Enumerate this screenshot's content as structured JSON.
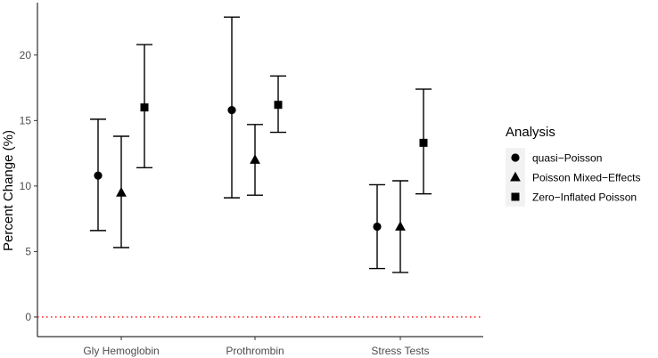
{
  "chart_data": {
    "type": "scatter",
    "title": "",
    "xlabel": "",
    "ylabel": "Percent Change (%)",
    "categories": [
      "Gly Hemoglobin",
      "Prothrombin",
      "Stress Tests"
    ],
    "ylim": [
      -1.5,
      24.0
    ],
    "yticks": [
      0,
      5,
      10,
      15,
      20
    ],
    "reference_line": {
      "y": 0,
      "style": "dotted",
      "color": "#ff0000"
    },
    "grid": false,
    "legend": {
      "title": "Analysis",
      "placement": "right"
    },
    "series": [
      {
        "name": "quasi−Poisson",
        "marker": "circle",
        "estimate": [
          10.8,
          15.8,
          6.9
        ],
        "lower": [
          6.6,
          9.1,
          3.7
        ],
        "upper": [
          15.1,
          22.9,
          10.1
        ]
      },
      {
        "name": "Poisson Mixed−Effects",
        "marker": "triangle",
        "estimate": [
          9.5,
          12.0,
          6.9
        ],
        "lower": [
          5.3,
          9.3,
          3.4
        ],
        "upper": [
          13.8,
          14.7,
          10.4
        ]
      },
      {
        "name": "Zero−Inflated Poisson",
        "marker": "square",
        "estimate": [
          16.0,
          16.2,
          13.3
        ],
        "lower": [
          11.4,
          14.1,
          9.4
        ],
        "upper": [
          20.8,
          18.4,
          17.4
        ]
      }
    ],
    "colors": {
      "ink": "#000000",
      "tick_label": "#4d4d4d",
      "legend_key_bg": "#f2f2f2"
    }
  }
}
